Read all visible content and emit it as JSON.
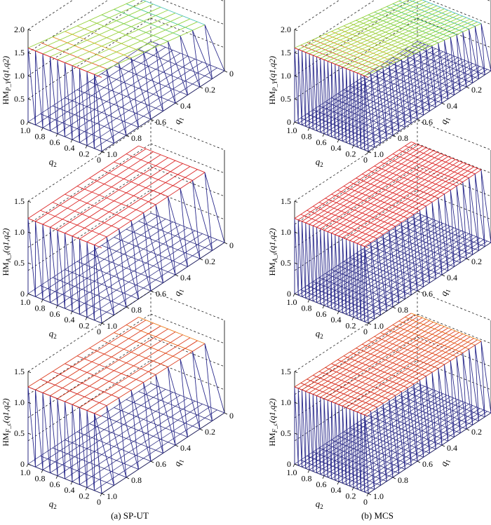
{
  "captions": {
    "left": "(a) SP-UT",
    "right": "(b) MCS"
  },
  "chart_data": [
    {
      "type": "surface",
      "panel": "SP-UT, row 1",
      "zlabel_main": "HM",
      "zlabel_sub": "P_Y",
      "zlabel_tail": "(q1,q2)",
      "xlabel": "q2",
      "ylabel": "q1",
      "grid_n": 10,
      "z_level_near": 1.6,
      "z_level_far": 1.05,
      "zticks": [
        "0",
        "0.5",
        "1.0",
        "1.5",
        "2.0"
      ],
      "zlim": [
        0,
        2.0
      ],
      "colormap": "jet-yellow-to-cyan",
      "q2_ticks": [
        "1.0",
        "0.8",
        "0.6",
        "0.4",
        "0.2",
        "0"
      ],
      "q1_ticks": [
        "0",
        "0.2",
        "0.4",
        "0.6",
        "0.8",
        "1.0"
      ]
    },
    {
      "type": "surface",
      "panel": "MCS, row 1",
      "zlabel_main": "HM",
      "zlabel_sub": "P_Y",
      "zlabel_tail": "(q1,q2)",
      "xlabel": "q2",
      "ylabel": "q1",
      "grid_n": 20,
      "z_level_near": 1.6,
      "z_level_far": 1.05,
      "zticks": [
        "0",
        "0.5",
        "1.0",
        "1.5",
        "2.0"
      ],
      "zlim": [
        0,
        2.0
      ],
      "colormap": "jet-yellow-to-cyan",
      "q2_ticks": [
        "1.0",
        "0.8",
        "0.6",
        "0.4",
        "0.2",
        "0"
      ],
      "q1_ticks": [
        "0",
        "0.2",
        "0.4",
        "0.6",
        "0.8",
        "1.0"
      ]
    },
    {
      "type": "surface",
      "panel": "SP-UT, row 2",
      "zlabel_main": "HM",
      "zlabel_sub": "A_s",
      "zlabel_tail": "(q1,q2)",
      "xlabel": "q2",
      "ylabel": "q1",
      "grid_n": 10,
      "z_level_near": 1.22,
      "z_level_far": 1.22,
      "zticks": [
        "0",
        "0.5",
        "1.0",
        "1.5"
      ],
      "zlim": [
        0,
        1.5
      ],
      "colormap": "red",
      "q2_ticks": [
        "1.0",
        "0.8",
        "0.6",
        "0.4",
        "0.2",
        "0"
      ],
      "q1_ticks": [
        "0",
        "0.2",
        "0.4",
        "0.6",
        "0.8",
        "1.0"
      ]
    },
    {
      "type": "surface",
      "panel": "MCS, row 2",
      "zlabel_main": "HM",
      "zlabel_sub": "A_s",
      "zlabel_tail": "(q1,q2)",
      "xlabel": "q2",
      "ylabel": "q1",
      "grid_n": 20,
      "z_level_near": 1.22,
      "z_level_far": 1.22,
      "zticks": [
        "0",
        "0.5",
        "1.0",
        "1.5"
      ],
      "zlim": [
        0,
        1.5
      ],
      "colormap": "red",
      "q2_ticks": [
        "1.0",
        "0.8",
        "0.6",
        "0.4",
        "0.2",
        "0"
      ],
      "q1_ticks": [
        "0",
        "0.2",
        "0.4",
        "0.6",
        "0.8",
        "1.0"
      ]
    },
    {
      "type": "surface",
      "panel": "SP-UT, row 3",
      "zlabel_main": "HM",
      "zlabel_sub": "F_c",
      "zlabel_tail": "(q1,q2)",
      "xlabel": "q2",
      "ylabel": "q1",
      "grid_n": 10,
      "z_level_near": 1.25,
      "z_level_far": 1.2,
      "zticks": [
        "0",
        "0.5",
        "1.0",
        "1.5"
      ],
      "zlim": [
        0,
        1.5
      ],
      "colormap": "red-to-orange",
      "q2_ticks": [
        "1.0",
        "0.8",
        "0.6",
        "0.4",
        "0.2",
        "0"
      ],
      "q1_ticks": [
        "0",
        "0.2",
        "0.4",
        "0.6",
        "0.8",
        "1.0"
      ]
    },
    {
      "type": "surface",
      "panel": "MCS, row 3",
      "zlabel_main": "HM",
      "zlabel_sub": "F_c",
      "zlabel_tail": "(q1,q2)",
      "xlabel": "q2",
      "ylabel": "q1",
      "grid_n": 20,
      "z_level_near": 1.25,
      "z_level_far": 1.2,
      "zticks": [
        "0",
        "0.5",
        "1.0",
        "1.5"
      ],
      "zlim": [
        0,
        1.5
      ],
      "colormap": "red-to-orange",
      "q2_ticks": [
        "1.0",
        "0.8",
        "0.6",
        "0.4",
        "0.2",
        "0"
      ],
      "q1_ticks": [
        "0",
        "0.2",
        "0.4",
        "0.6",
        "0.8",
        "1.0"
      ]
    }
  ]
}
